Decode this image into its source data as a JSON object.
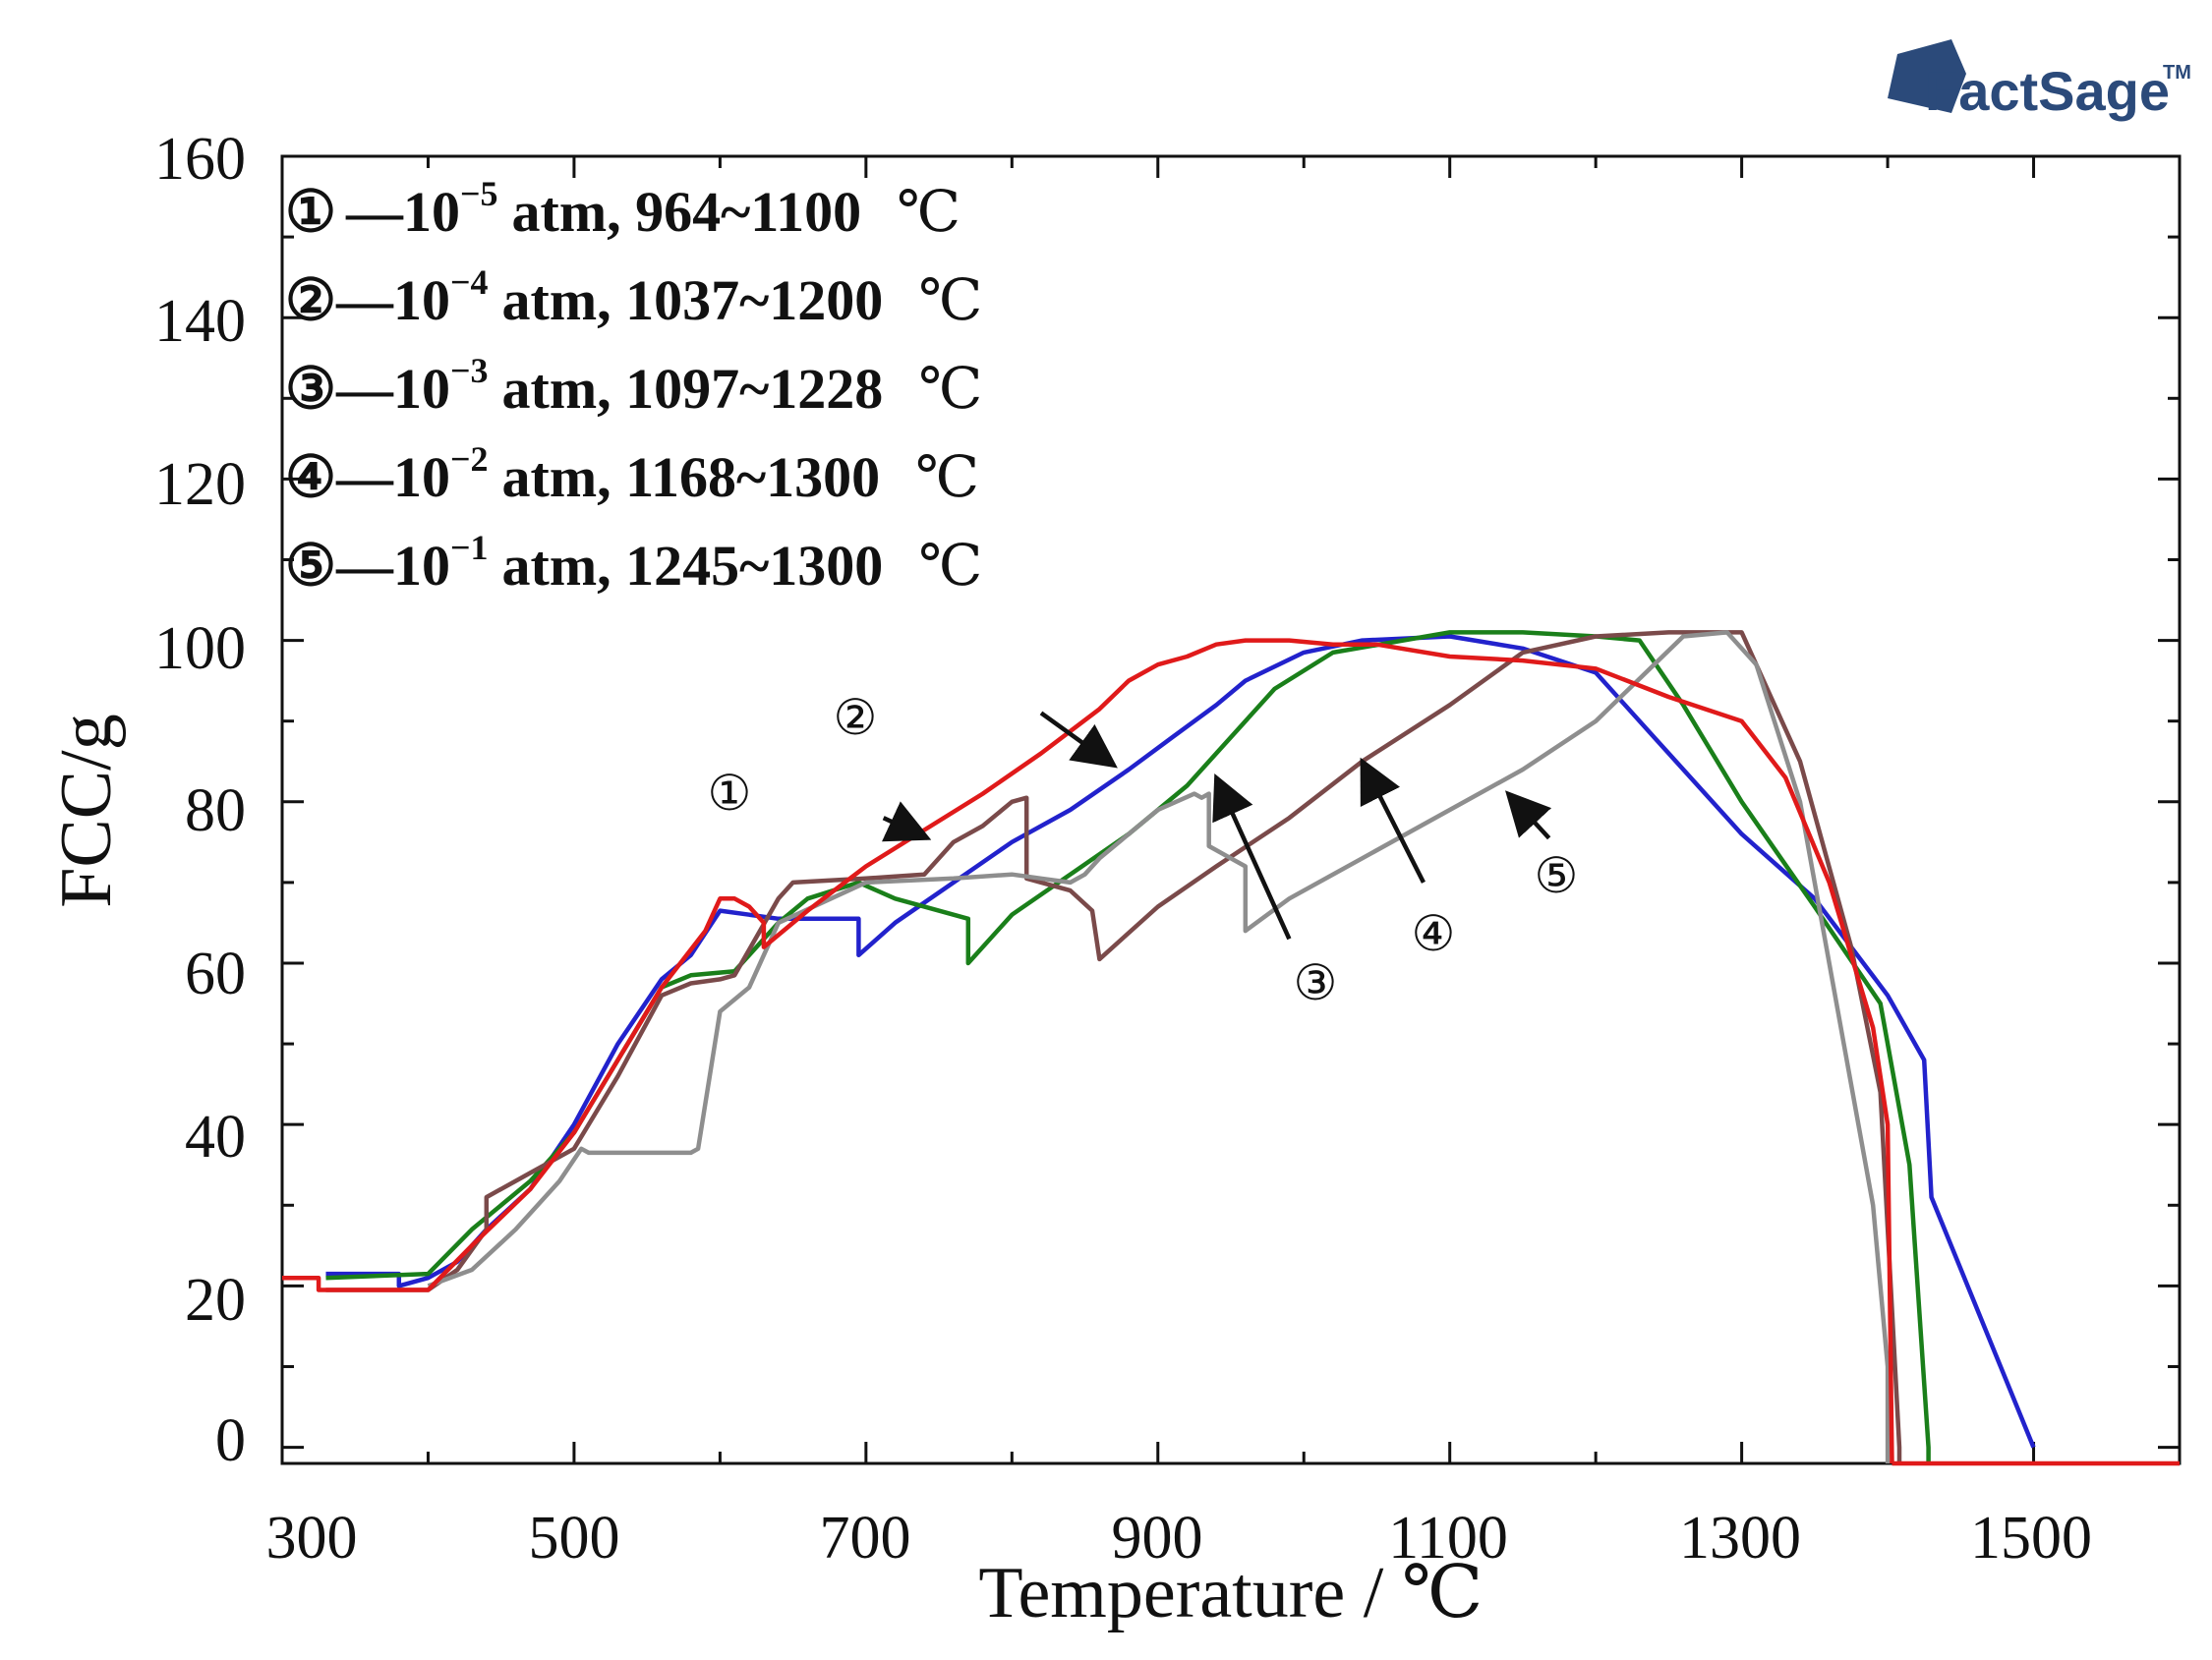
{
  "logo": {
    "brand": "FactSage",
    "tm": "TM"
  },
  "chart_data": {
    "type": "line",
    "xlabel": "Temperature / ℃",
    "ylabel": "FCC/g",
    "xlim": [
      300,
      1600
    ],
    "ylim": [
      -2,
      160
    ],
    "xticks": [
      300,
      500,
      700,
      900,
      1100,
      1300,
      1500
    ],
    "yticks": [
      0,
      20,
      40,
      60,
      80,
      100,
      120,
      140,
      160
    ],
    "legend": [
      {
        "num": "①",
        "dash": "—",
        "base": "10",
        "exp": "−5",
        "text": "atm, 964~1100",
        "unit": "℃"
      },
      {
        "num": "②",
        "dash": "—",
        "base": "10",
        "exp": "−4",
        "text": "atm, 1037~1200",
        "unit": "℃"
      },
      {
        "num": "③",
        "dash": "—",
        "base": "10",
        "exp": "−3",
        "text": "atm, 1097~1228",
        "unit": "℃"
      },
      {
        "num": "④",
        "dash": "—",
        "base": "10",
        "exp": "−2",
        "text": "atm, 1168~1300",
        "unit": "℃"
      },
      {
        "num": "⑤",
        "dash": "—",
        "base": "10",
        "exp": "−1",
        "text": "atm, 1245~1300",
        "unit": "℃"
      }
    ],
    "callouts": [
      {
        "label": "①",
        "from": [
          712,
          78
        ],
        "to": [
          742,
          75.5
        ]
      },
      {
        "label": "②",
        "from": [
          820,
          91
        ],
        "to": [
          870,
          84.5
        ]
      },
      {
        "label": "③",
        "from": [
          990,
          63
        ],
        "to": [
          940,
          83
        ]
      },
      {
        "label": "④",
        "from": [
          1082,
          70
        ],
        "to": [
          1040,
          85
        ]
      },
      {
        "label": "⑤",
        "from": [
          1168,
          75.5
        ],
        "to": [
          1140,
          81
        ]
      }
    ],
    "series": [
      {
        "name": "① 10−5 atm",
        "color": "#2222cc",
        "x": [
          330,
          380,
          380,
          400,
          420,
          440,
          470,
          500,
          530,
          560,
          580,
          600,
          620,
          640,
          670,
          695,
          695,
          720,
          760,
          800,
          840,
          880,
          910,
          940,
          960,
          1000,
          1040,
          1100,
          1150,
          1200,
          1240,
          1300,
          1350,
          1400,
          1425,
          1430,
          1500
        ],
        "y": [
          21.5,
          21.5,
          20,
          21,
          23,
          27,
          32,
          40,
          50,
          58,
          61,
          66.5,
          66,
          65.5,
          65.5,
          65.5,
          61,
          65,
          70,
          75,
          79,
          84,
          88,
          92,
          95,
          98.5,
          100,
          100.5,
          99,
          96,
          88,
          76,
          68,
          56,
          48,
          31,
          0
        ]
      },
      {
        "name": "② 10−4 atm",
        "color": "#1a7f1a",
        "x": [
          330,
          400,
          430,
          470,
          500,
          530,
          560,
          580,
          610,
          640,
          660,
          695,
          720,
          760,
          770,
          770,
          800,
          840,
          880,
          920,
          950,
          980,
          1020,
          1100,
          1150,
          1200,
          1230,
          1260,
          1300,
          1350,
          1395,
          1415,
          1428,
          1428
        ],
        "y": [
          21,
          21.5,
          27,
          33,
          39,
          48,
          57,
          58.5,
          59,
          65,
          68,
          70,
          68,
          66,
          65.5,
          60,
          66,
          71,
          76,
          82,
          88,
          94,
          98.5,
          101,
          101,
          100.5,
          100,
          92,
          80,
          67,
          55,
          35,
          0,
          -2
        ]
      },
      {
        "name": "③ 10−3 atm",
        "color": "#7a4a4a",
        "x": [
          330,
          400,
          420,
          440,
          440,
          470,
          500,
          530,
          560,
          580,
          600,
          610,
          640,
          650,
          700,
          740,
          760,
          780,
          800,
          810,
          810,
          840,
          855,
          860,
          860,
          900,
          940,
          990,
          1040,
          1100,
          1150,
          1200,
          1250,
          1300,
          1340,
          1375,
          1395,
          1408,
          1408
        ],
        "y": [
          19.5,
          19.5,
          22,
          27,
          31,
          34,
          37,
          46,
          56,
          57.5,
          58,
          58.5,
          68,
          70,
          70.5,
          71,
          75,
          77,
          80,
          80.5,
          70.5,
          69,
          66.5,
          60.5,
          60.5,
          67,
          72,
          78,
          85,
          92,
          98.5,
          100.5,
          101,
          101,
          85,
          62,
          44,
          0,
          -2
        ]
      },
      {
        "name": "④ 10−2 atm",
        "color": "#8e8e8e",
        "x": [
          400,
          430,
          460,
          490,
          505,
          510,
          540,
          580,
          585,
          600,
          620,
          640,
          700,
          760,
          800,
          820,
          840,
          850,
          860,
          900,
          925,
          930,
          935,
          935,
          950,
          960,
          960,
          990,
          1040,
          1100,
          1150,
          1200,
          1240,
          1260,
          1290,
          1310,
          1340,
          1370,
          1390,
          1400,
          1400
        ],
        "y": [
          20,
          22,
          27,
          33,
          37,
          36.5,
          36.5,
          36.5,
          37,
          54,
          57,
          65,
          70,
          70.5,
          71,
          70.5,
          70,
          71,
          73,
          79,
          81,
          80.5,
          81,
          74.5,
          73,
          72,
          64,
          68,
          73,
          79,
          84,
          90,
          97,
          100.5,
          101,
          97,
          80,
          50,
          30,
          10,
          -2
        ]
      },
      {
        "name": "⑤ 10−1 atm",
        "color": "#e01a1a",
        "x": [
          300,
          325,
          325,
          400,
          430,
          470,
          500,
          530,
          560,
          590,
          600,
          610,
          620,
          630,
          630,
          660,
          700,
          740,
          780,
          820,
          860,
          880,
          900,
          920,
          940,
          960,
          990,
          1020,
          1050,
          1100,
          1150,
          1200,
          1250,
          1300,
          1330,
          1360,
          1390,
          1400,
          1403
        ],
        "y": [
          21,
          21,
          19.5,
          19.5,
          25,
          32,
          39,
          48,
          57,
          64,
          68,
          68,
          67,
          65,
          62,
          66.5,
          72,
          76.5,
          81,
          86,
          91.5,
          95,
          97,
          98,
          99.5,
          100,
          100,
          99.5,
          99.5,
          98,
          97.5,
          96.5,
          93,
          90,
          83,
          70,
          52,
          40,
          -2
        ]
      }
    ]
  }
}
